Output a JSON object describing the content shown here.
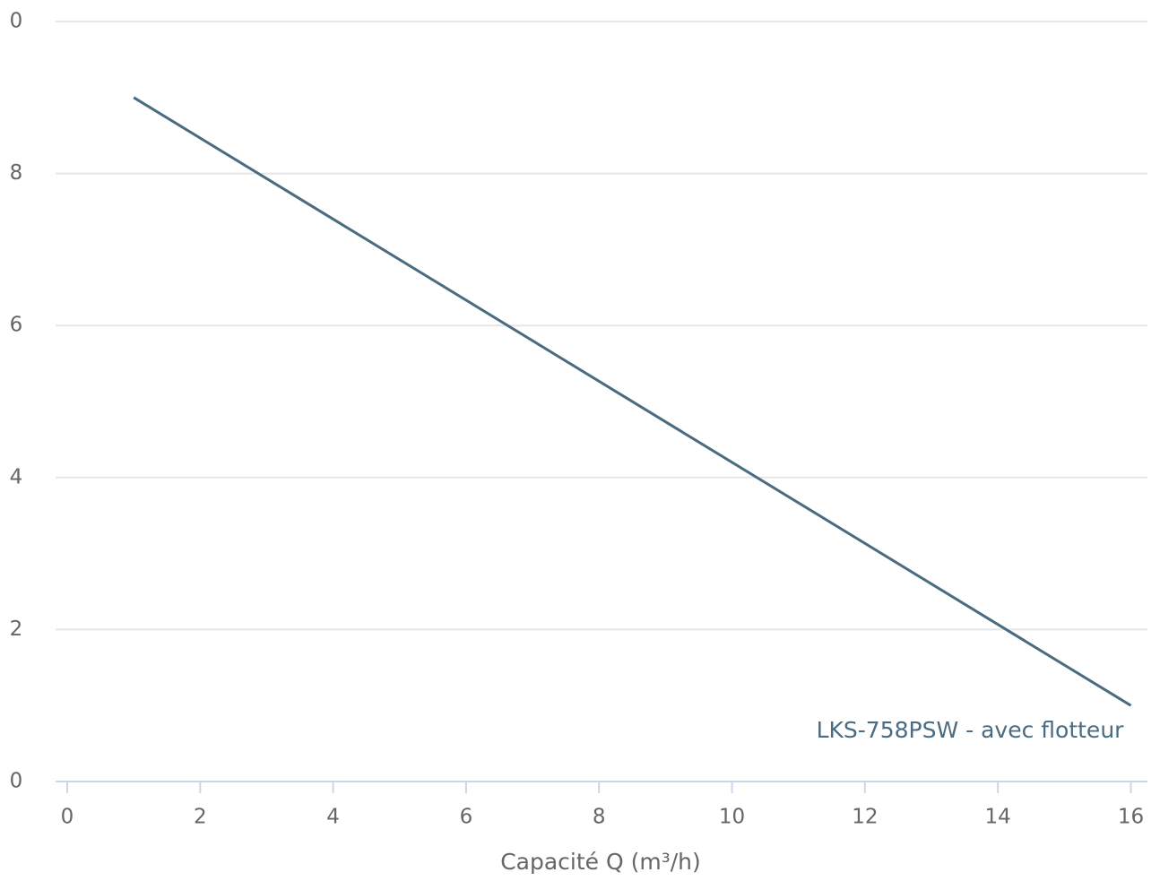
{
  "chart_data": {
    "type": "line",
    "x_label": "Capacité Q (m³/h)",
    "x": [
      1,
      16
    ],
    "series": [
      {
        "name": "LKS-758PSW - avec flotteur",
        "color": "#4a6b80",
        "values": [
          9,
          1
        ]
      }
    ],
    "xlim": [
      0,
      16.25
    ],
    "xticks": [
      0,
      2,
      4,
      6,
      8,
      10,
      12,
      14,
      16
    ],
    "ylim": [
      0,
      10
    ],
    "yticks": [
      0,
      2,
      4,
      6,
      8,
      {
        "value": 10,
        "label": "0"
      }
    ],
    "grid": true
  }
}
